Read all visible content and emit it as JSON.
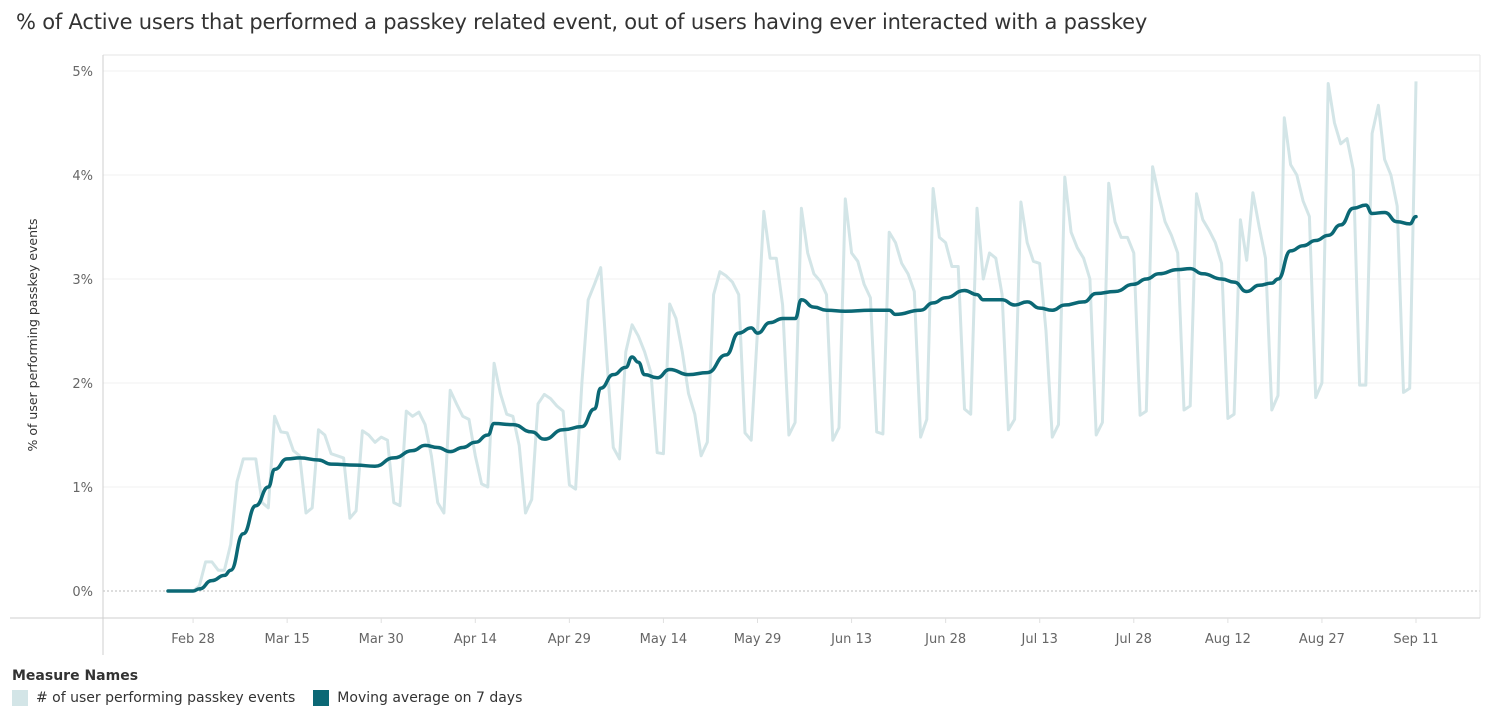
{
  "title": "% of Active users that performed a passkey related event, out of users having ever interacted with a passkey",
  "legend": {
    "title": "Measure Names",
    "items": [
      {
        "label": "# of user performing passkey events",
        "color": "#d3e5e7"
      },
      {
        "label": "Moving average on 7 days",
        "color": "#0b6875"
      }
    ]
  },
  "chart_data": {
    "type": "line",
    "title": "% of Active users that performed a passkey related event, out of users having ever interacted with a passkey",
    "xlabel": "",
    "ylabel": "% of user performing passkey events",
    "ylim": [
      0,
      5
    ],
    "y_ticks": [
      "0%",
      "1%",
      "2%",
      "3%",
      "4%",
      "5%"
    ],
    "x_ticks": [
      {
        "date": "02-28",
        "label": "Feb 28"
      },
      {
        "date": "03-15",
        "label": "Mar 15"
      },
      {
        "date": "03-30",
        "label": "Mar 30"
      },
      {
        "date": "04-14",
        "label": "Apr 14"
      },
      {
        "date": "04-29",
        "label": "Apr 29"
      },
      {
        "date": "05-14",
        "label": "May 14"
      },
      {
        "date": "05-29",
        "label": "May 29"
      },
      {
        "date": "06-13",
        "label": "Jun 13"
      },
      {
        "date": "06-28",
        "label": "Jun 28"
      },
      {
        "date": "07-13",
        "label": "Jul 13"
      },
      {
        "date": "07-28",
        "label": "Jul 28"
      },
      {
        "date": "08-12",
        "label": "Aug 12"
      },
      {
        "date": "08-27",
        "label": "Aug 27"
      },
      {
        "date": "09-11",
        "label": "Sep 11"
      }
    ],
    "x_range": [
      "02-24",
      "09-11"
    ],
    "grid": true,
    "legend_position": "bottom-left",
    "series": [
      {
        "name": "# of user performing passkey events",
        "color": "#d3e5e7",
        "x_start": "02-24",
        "x_step_days": 1,
        "values": [
          0,
          0,
          0,
          0,
          0,
          0.05,
          0.28,
          0.28,
          0.2,
          0.2,
          0.45,
          1.05,
          1.27,
          1.27,
          1.27,
          0.85,
          0.8,
          1.68,
          1.53,
          1.52,
          1.35,
          1.3,
          0.75,
          0.8,
          1.55,
          1.5,
          1.32,
          1.3,
          1.28,
          0.7,
          0.77,
          1.54,
          1.5,
          1.43,
          1.48,
          1.45,
          0.85,
          0.82,
          1.73,
          1.68,
          1.72,
          1.6,
          1.3,
          0.85,
          0.75,
          1.93,
          1.8,
          1.68,
          1.65,
          1.3,
          1.03,
          1.0,
          2.19,
          1.9,
          1.7,
          1.68,
          1.4,
          0.75,
          0.88,
          1.8,
          1.89,
          1.85,
          1.78,
          1.73,
          1.02,
          0.98,
          2.0,
          2.8,
          2.95,
          3.11,
          2.2,
          1.38,
          1.27,
          2.3,
          2.56,
          2.45,
          2.3,
          2.1,
          1.33,
          1.32,
          2.76,
          2.62,
          2.3,
          1.9,
          1.7,
          1.3,
          1.43,
          2.85,
          3.07,
          3.03,
          2.97,
          2.85,
          1.52,
          1.45,
          2.5,
          3.65,
          3.2,
          3.2,
          2.75,
          1.5,
          1.62,
          3.68,
          3.25,
          3.05,
          2.98,
          2.85,
          1.45,
          1.57,
          3.77,
          3.25,
          3.17,
          2.95,
          2.82,
          1.53,
          1.51,
          3.45,
          3.35,
          3.15,
          3.05,
          2.88,
          1.48,
          1.65,
          3.87,
          3.4,
          3.35,
          3.12,
          3.12,
          1.75,
          1.7,
          3.68,
          3.0,
          3.25,
          3.2,
          2.85,
          1.55,
          1.65,
          3.74,
          3.35,
          3.17,
          3.15,
          2.5,
          1.48,
          1.6,
          3.98,
          3.45,
          3.3,
          3.2,
          3.0,
          1.5,
          1.62,
          3.92,
          3.55,
          3.4,
          3.4,
          3.25,
          1.69,
          1.73,
          4.08,
          3.8,
          3.55,
          3.42,
          3.25,
          1.74,
          1.78,
          3.82,
          3.57,
          3.47,
          3.35,
          3.15,
          1.66,
          1.7,
          3.57,
          3.18,
          3.83,
          3.5,
          3.2,
          1.74,
          1.88,
          4.55,
          4.1,
          4.0,
          3.75,
          3.6,
          1.86,
          2.0,
          4.88,
          4.5,
          4.3,
          4.35,
          4.05,
          1.98,
          1.98,
          4.4,
          4.67,
          4.15,
          4.0,
          3.7,
          1.91,
          1.95,
          4.9
        ]
      },
      {
        "name": "Moving average on 7 days",
        "color": "#0b6875",
        "points": [
          [
            "02-24",
            0
          ],
          [
            "02-28",
            0
          ],
          [
            "03-01",
            0.02
          ],
          [
            "03-03",
            0.1
          ],
          [
            "03-05",
            0.15
          ],
          [
            "03-06",
            0.2
          ],
          [
            "03-08",
            0.55
          ],
          [
            "03-10",
            0.82
          ],
          [
            "03-12",
            1.0
          ],
          [
            "03-13",
            1.17
          ],
          [
            "03-15",
            1.27
          ],
          [
            "03-17",
            1.28
          ],
          [
            "03-20",
            1.26
          ],
          [
            "03-22",
            1.22
          ],
          [
            "03-26",
            1.21
          ],
          [
            "03-29",
            1.2
          ],
          [
            "04-01",
            1.28
          ],
          [
            "04-04",
            1.35
          ],
          [
            "04-06",
            1.4
          ],
          [
            "04-08",
            1.38
          ],
          [
            "04-10",
            1.34
          ],
          [
            "04-12",
            1.38
          ],
          [
            "04-14",
            1.43
          ],
          [
            "04-16",
            1.5
          ],
          [
            "04-17",
            1.61
          ],
          [
            "04-20",
            1.6
          ],
          [
            "04-23",
            1.53
          ],
          [
            "04-25",
            1.46
          ],
          [
            "04-28",
            1.55
          ],
          [
            "05-01",
            1.58
          ],
          [
            "05-03",
            1.75
          ],
          [
            "05-04",
            1.95
          ],
          [
            "05-06",
            2.08
          ],
          [
            "05-08",
            2.15
          ],
          [
            "05-09",
            2.25
          ],
          [
            "05-10",
            2.2
          ],
          [
            "05-11",
            2.08
          ],
          [
            "05-13",
            2.05
          ],
          [
            "05-15",
            2.13
          ],
          [
            "05-18",
            2.08
          ],
          [
            "05-21",
            2.1
          ],
          [
            "05-24",
            2.27
          ],
          [
            "05-26",
            2.48
          ],
          [
            "05-28",
            2.53
          ],
          [
            "05-29",
            2.48
          ],
          [
            "05-31",
            2.58
          ],
          [
            "06-02",
            2.62
          ],
          [
            "06-04",
            2.62
          ],
          [
            "06-05",
            2.8
          ],
          [
            "06-07",
            2.73
          ],
          [
            "06-09",
            2.7
          ],
          [
            "06-12",
            2.69
          ],
          [
            "06-16",
            2.7
          ],
          [
            "06-19",
            2.7
          ],
          [
            "06-20",
            2.66
          ],
          [
            "06-24",
            2.7
          ],
          [
            "06-26",
            2.77
          ],
          [
            "06-28",
            2.82
          ],
          [
            "07-01",
            2.89
          ],
          [
            "07-03",
            2.85
          ],
          [
            "07-04",
            2.8
          ],
          [
            "07-07",
            2.8
          ],
          [
            "07-09",
            2.75
          ],
          [
            "07-11",
            2.78
          ],
          [
            "07-13",
            2.72
          ],
          [
            "07-15",
            2.7
          ],
          [
            "07-17",
            2.75
          ],
          [
            "07-20",
            2.78
          ],
          [
            "07-22",
            2.86
          ],
          [
            "07-25",
            2.88
          ],
          [
            "07-28",
            2.95
          ],
          [
            "07-30",
            3.0
          ],
          [
            "08-01",
            3.05
          ],
          [
            "08-04",
            3.09
          ],
          [
            "08-06",
            3.1
          ],
          [
            "08-08",
            3.05
          ],
          [
            "08-11",
            3.0
          ],
          [
            "08-13",
            2.97
          ],
          [
            "08-15",
            2.88
          ],
          [
            "08-17",
            2.94
          ],
          [
            "08-19",
            2.96
          ],
          [
            "08-20",
            3.0
          ],
          [
            "08-22",
            3.27
          ],
          [
            "08-24",
            3.32
          ],
          [
            "08-26",
            3.37
          ],
          [
            "08-28",
            3.42
          ],
          [
            "08-30",
            3.52
          ],
          [
            "09-01",
            3.68
          ],
          [
            "09-03",
            3.71
          ],
          [
            "09-04",
            3.63
          ],
          [
            "09-06",
            3.64
          ],
          [
            "09-08",
            3.55
          ],
          [
            "09-10",
            3.53
          ],
          [
            "09-11",
            3.6
          ]
        ]
      }
    ]
  }
}
